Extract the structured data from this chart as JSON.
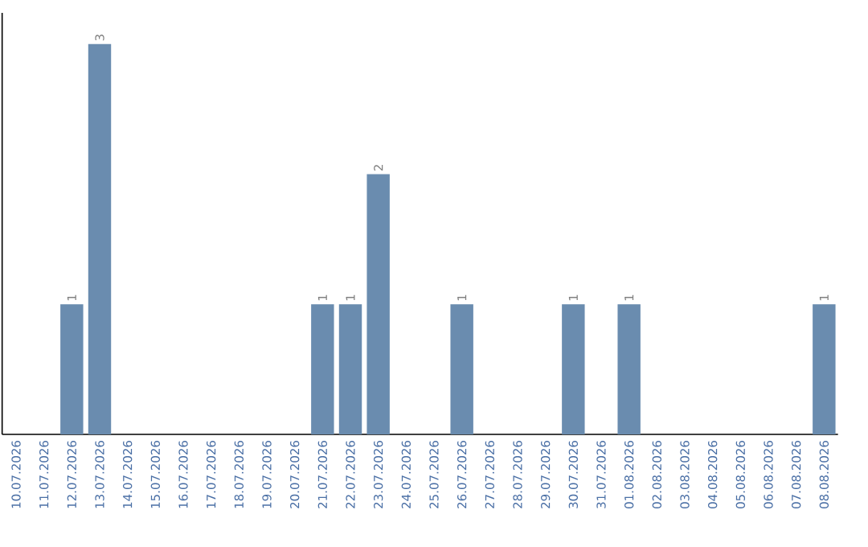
{
  "chart_data": {
    "type": "bar",
    "categories": [
      "10.07.2026",
      "11.07.2026",
      "12.07.2026",
      "13.07.2026",
      "14.07.2026",
      "15.07.2026",
      "16.07.2026",
      "17.07.2026",
      "18.07.2026",
      "19.07.2026",
      "20.07.2026",
      "21.07.2026",
      "22.07.2026",
      "23.07.2026",
      "24.07.2026",
      "25.07.2026",
      "26.07.2026",
      "27.07.2026",
      "28.07.2026",
      "29.07.2026",
      "30.07.2026",
      "31.07.2026",
      "01.08.2026",
      "02.08.2026",
      "03.08.2026",
      "04.08.2026",
      "05.08.2026",
      "06.08.2026",
      "07.08.2026",
      "08.08.2026"
    ],
    "values": [
      0,
      0,
      1,
      3,
      0,
      0,
      0,
      0,
      0,
      0,
      0,
      1,
      1,
      2,
      0,
      0,
      1,
      0,
      0,
      0,
      1,
      0,
      1,
      0,
      0,
      0,
      0,
      0,
      0,
      1
    ],
    "value_labels": [
      null,
      null,
      "1",
      "3",
      null,
      null,
      null,
      null,
      null,
      null,
      null,
      "1",
      "1",
      "2",
      null,
      null,
      "1",
      null,
      null,
      null,
      "1",
      null,
      "1",
      null,
      null,
      null,
      null,
      null,
      null,
      "1"
    ],
    "color": "#6a8caf"
  }
}
